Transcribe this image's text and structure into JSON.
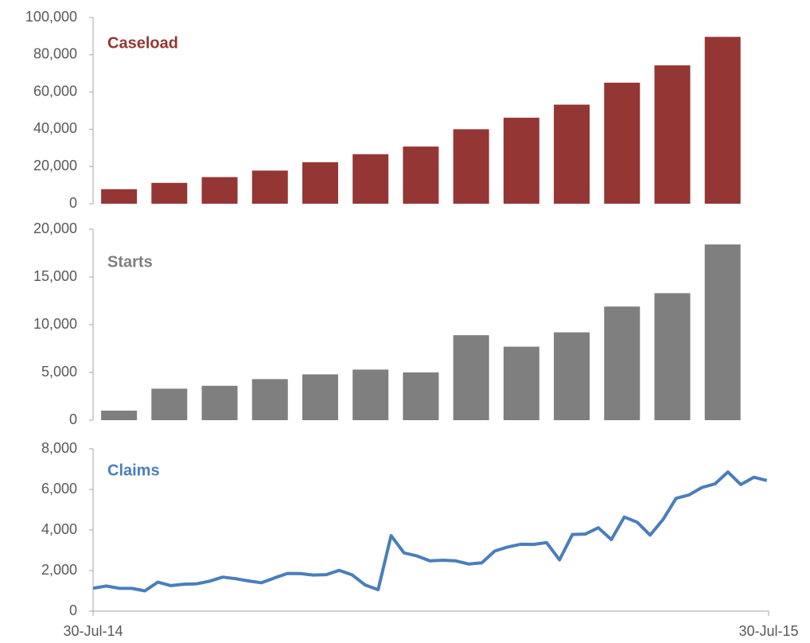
{
  "chart_data": [
    {
      "type": "bar",
      "title": "Caseload",
      "color": "#943634",
      "values": [
        7800,
        11200,
        14300,
        17800,
        22300,
        26600,
        30700,
        40000,
        46200,
        53200,
        65000,
        74300,
        89600
      ],
      "ylim": [
        0,
        100000
      ],
      "yticks": [
        0,
        {
          "value": 20000,
          "label": "20,000"
        },
        {
          "value": 40000,
          "label": "40,000"
        },
        {
          "value": 60000,
          "label": "60,000"
        },
        {
          "value": 80000,
          "label": "80,000"
        },
        {
          "value": 100000,
          "label": "100,000"
        }
      ]
    },
    {
      "type": "bar",
      "title": "Starts",
      "color": "#7f7f7f",
      "values": [
        1000,
        3300,
        3600,
        4300,
        4800,
        5300,
        5000,
        8900,
        7700,
        9200,
        11900,
        13300,
        18400
      ],
      "ylim": [
        0,
        20000
      ],
      "yticks": [
        0,
        {
          "value": 5000,
          "label": "5,000"
        },
        {
          "value": 10000,
          "label": "10,000"
        },
        {
          "value": 15000,
          "label": "15,000"
        },
        {
          "value": 20000,
          "label": "20,000"
        }
      ]
    },
    {
      "type": "line",
      "title": "Claims",
      "color": "#4a7ebb",
      "x": [
        "2014-07-30",
        "2014-08-06",
        "2014-08-13",
        "2014-08-20",
        "2014-08-27",
        "2014-09-03",
        "2014-09-10",
        "2014-09-17",
        "2014-09-24",
        "2014-10-01",
        "2014-10-08",
        "2014-10-15",
        "2014-10-22",
        "2014-10-29",
        "2014-11-05",
        "2014-11-12",
        "2014-11-19",
        "2014-11-26",
        "2014-12-03",
        "2014-12-10",
        "2014-12-17",
        "2014-12-24",
        "2014-12-31",
        "2015-01-07",
        "2015-01-14",
        "2015-01-21",
        "2015-01-28",
        "2015-02-04",
        "2015-02-11",
        "2015-02-18",
        "2015-02-25",
        "2015-03-04",
        "2015-03-11",
        "2015-03-18",
        "2015-03-25",
        "2015-04-01",
        "2015-04-08",
        "2015-04-15",
        "2015-04-22",
        "2015-04-29",
        "2015-05-06",
        "2015-05-13",
        "2015-05-20",
        "2015-05-27",
        "2015-06-03",
        "2015-06-10",
        "2015-06-17",
        "2015-06-24",
        "2015-07-01",
        "2015-07-08",
        "2015-07-15",
        "2015-07-22",
        "2015-07-29"
      ],
      "values": [
        1130,
        1240,
        1130,
        1120,
        1000,
        1430,
        1260,
        1330,
        1350,
        1480,
        1680,
        1600,
        1490,
        1400,
        1640,
        1860,
        1850,
        1780,
        1800,
        2010,
        1790,
        1290,
        1060,
        3720,
        2870,
        2720,
        2480,
        2510,
        2480,
        2320,
        2380,
        2960,
        3160,
        3300,
        3290,
        3380,
        2530,
        3780,
        3800,
        4110,
        3530,
        4640,
        4380,
        3750,
        4520,
        5560,
        5730,
        6100,
        6270,
        6860,
        6240,
        6600,
        6440
      ],
      "ylim": [
        0,
        8000
      ],
      "yticks": [
        0,
        {
          "value": 2000,
          "label": "2,000"
        },
        {
          "value": 4000,
          "label": "4,000"
        },
        {
          "value": 6000,
          "label": "6,000"
        },
        {
          "value": 8000,
          "label": "8,000"
        }
      ],
      "xlim": [
        "2014-07-30",
        "2015-07-30"
      ],
      "xticks": [
        {
          "value": "2014-07-30",
          "label": "30-Jul-14"
        },
        {
          "value": "2015-07-30",
          "label": "30-Jul-15"
        }
      ]
    }
  ]
}
